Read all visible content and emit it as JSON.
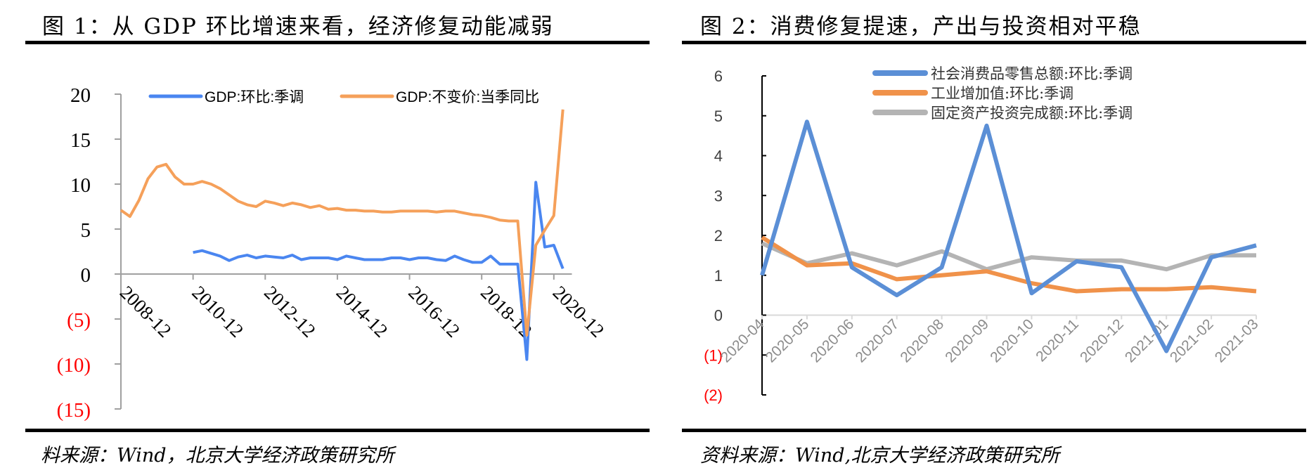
{
  "panels": [
    {
      "title": "图 1：从 GDP 环比增速来看，经济修复动能减弱",
      "source": "料来源：Wind，北京大学经济政策研究所"
    },
    {
      "title": "图 2：消费修复提速，产出与投资相对平稳",
      "source": "资料来源：Wind,北京大学经济政策研究所"
    }
  ],
  "chart_data": [
    {
      "type": "line",
      "title": "",
      "x_start": "2008-12",
      "x_frequency": "quarterly",
      "x_tick_labels": [
        "2008-12",
        "2010-12",
        "2012-12",
        "2014-12",
        "2016-12",
        "2018-12",
        "2020-12"
      ],
      "y_tick_labels": [
        "20",
        "15",
        "10",
        "5",
        "0",
        "(5)",
        "(10)",
        "(15)"
      ],
      "y_ticks": [
        20,
        15,
        10,
        5,
        0,
        -5,
        -10,
        -15
      ],
      "ylim": [
        -15,
        20
      ],
      "negative_label_color": "#ff0000",
      "grid": false,
      "legend": "top",
      "series": [
        {
          "name": "GDP:环比:季调",
          "color": "#4a86f0",
          "start": "2010-12",
          "values": [
            2.4,
            2.6,
            2.3,
            2.0,
            1.5,
            1.9,
            2.1,
            1.8,
            2.0,
            1.9,
            1.8,
            2.1,
            1.6,
            1.8,
            1.8,
            1.8,
            1.6,
            2.0,
            1.8,
            1.6,
            1.6,
            1.6,
            1.8,
            1.8,
            1.6,
            1.8,
            1.8,
            1.6,
            1.5,
            2.0,
            1.6,
            1.3,
            1.3,
            2.0,
            1.1,
            1.1,
            1.1,
            -9.5,
            10.2,
            3.0,
            3.2,
            0.6
          ]
        },
        {
          "name": "GDP:不变价:当季同比",
          "color": "#f5a05a",
          "start": "2008-12",
          "values": [
            7.1,
            6.4,
            8.2,
            10.6,
            11.9,
            12.2,
            10.8,
            10.0,
            10.0,
            10.3,
            10.0,
            9.5,
            8.8,
            8.1,
            7.7,
            7.5,
            8.1,
            7.9,
            7.6,
            7.9,
            7.7,
            7.4,
            7.6,
            7.2,
            7.3,
            7.1,
            7.1,
            7.0,
            7.0,
            6.9,
            6.9,
            7.0,
            7.0,
            7.0,
            7.0,
            6.9,
            7.0,
            7.0,
            6.8,
            6.6,
            6.5,
            6.3,
            6.0,
            5.9,
            5.9,
            -6.8,
            3.2,
            4.9,
            6.5,
            18.3
          ]
        }
      ]
    },
    {
      "type": "line",
      "title": "",
      "categories": [
        "2020-04",
        "2020-05",
        "2020-06",
        "2020-07",
        "2020-08",
        "2020-09",
        "2020-10",
        "2020-11",
        "2020-12",
        "2021-01",
        "2021-02",
        "2021-03"
      ],
      "y_tick_labels": [
        "6",
        "5",
        "4",
        "3",
        "2",
        "1",
        "0",
        "(1)",
        "(2)"
      ],
      "y_ticks": [
        6,
        5,
        4,
        3,
        2,
        1,
        0,
        -1,
        -2
      ],
      "ylim": [
        -2,
        6
      ],
      "negative_label_color": "#ff0000",
      "grid": false,
      "legend": "top-right",
      "series": [
        {
          "name": "社会消费品零售总额:环比:季调",
          "color": "#5b8fd6",
          "values": [
            1.0,
            4.85,
            1.2,
            0.5,
            1.2,
            4.75,
            0.55,
            1.35,
            1.2,
            -0.9,
            1.45,
            1.75
          ]
        },
        {
          "name": "工业增加值:环比:季调",
          "color": "#f0924a",
          "values": [
            1.95,
            1.25,
            1.3,
            0.9,
            1.0,
            1.1,
            0.8,
            0.6,
            0.65,
            0.65,
            0.7,
            0.6
          ]
        },
        {
          "name": "固定资产投资完成额:环比:季调",
          "color": "#b4b4b4",
          "values": [
            1.8,
            1.3,
            1.55,
            1.25,
            1.6,
            1.15,
            1.45,
            1.37,
            1.37,
            1.15,
            1.5,
            1.5
          ]
        }
      ]
    }
  ]
}
